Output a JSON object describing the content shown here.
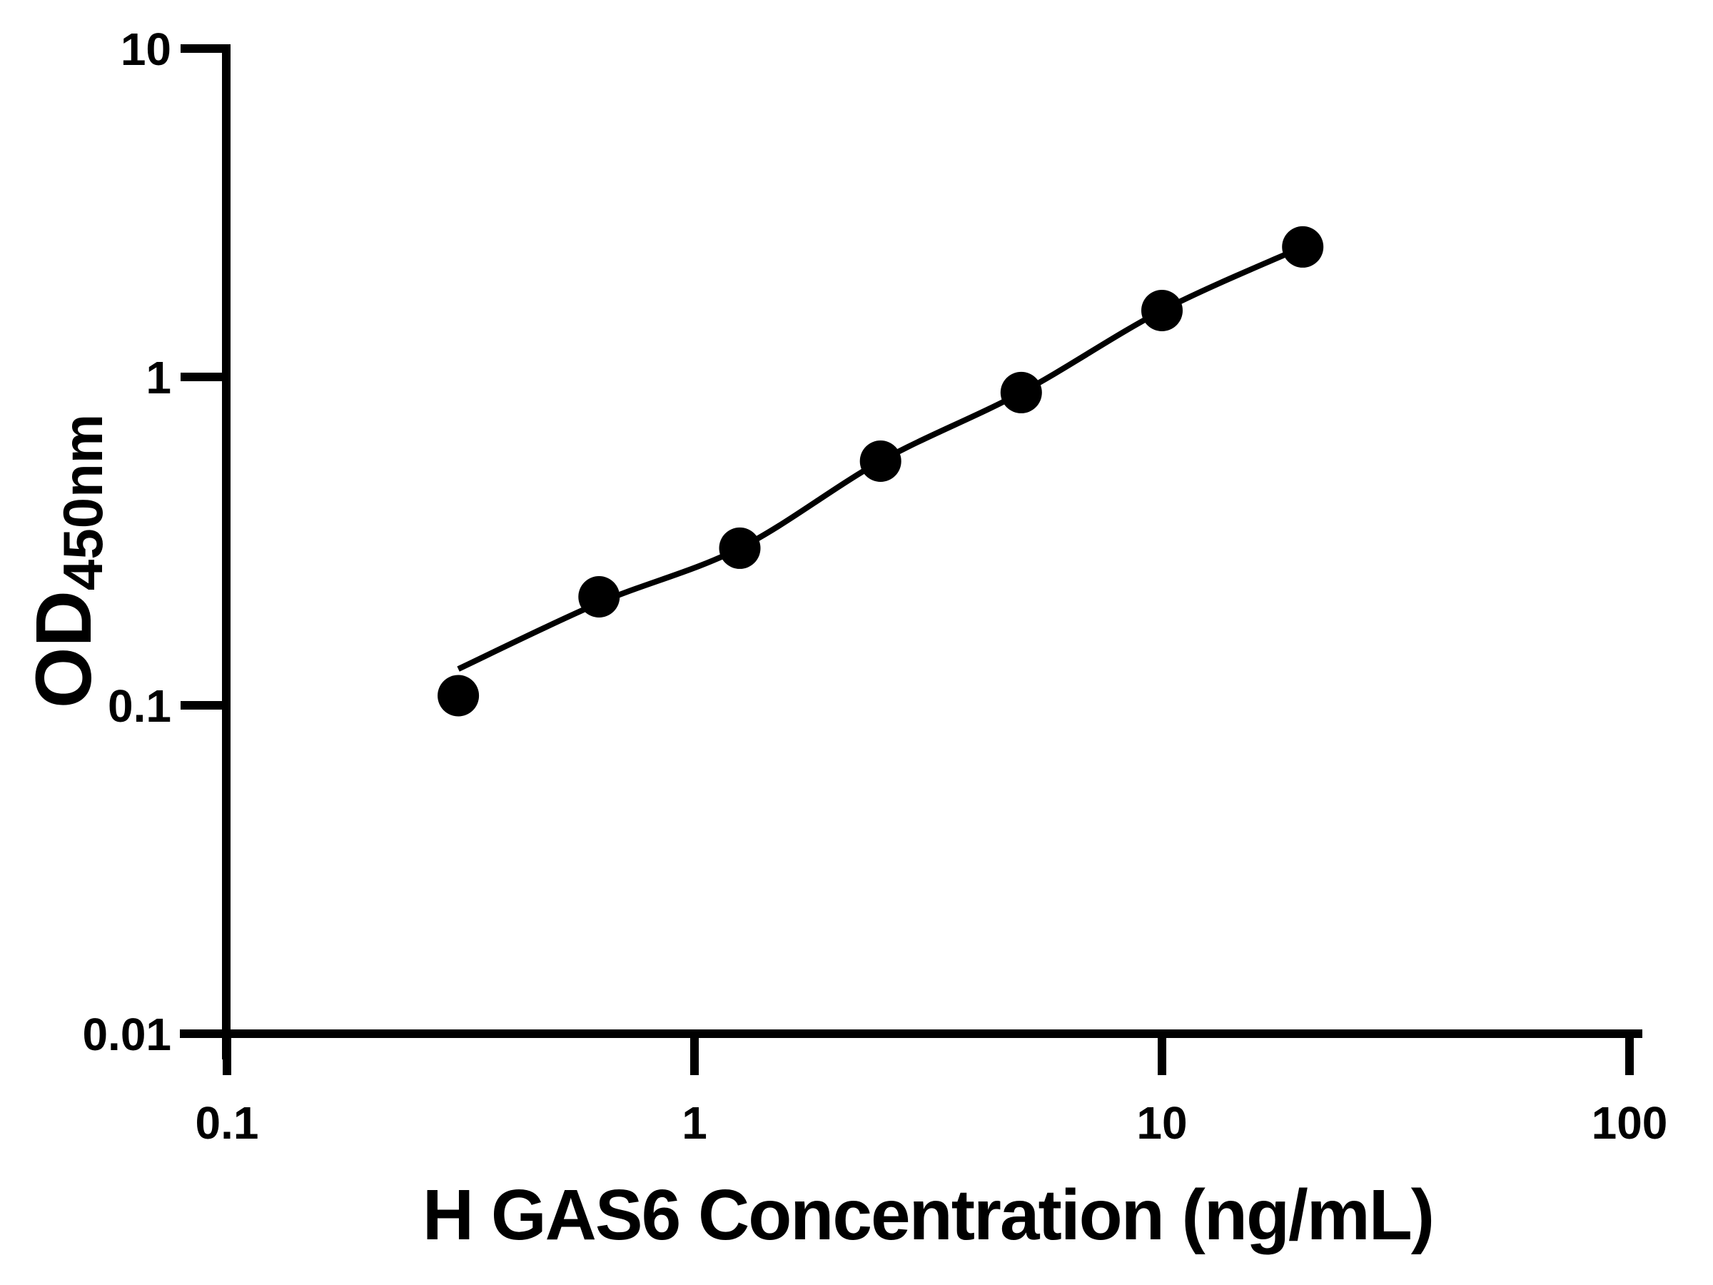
{
  "colors": {
    "ink": "#000000",
    "background": "#ffffff"
  },
  "chart_data": {
    "type": "scatter",
    "subtype": "standard-curve-with-fit-line",
    "title": "",
    "xlabel": "H GAS6 Concentration (ng/mL)",
    "ylabel": "OD450nm",
    "ylabel_parts": {
      "base": "OD",
      "subscript": "450nm"
    },
    "x_scale": "log",
    "y_scale": "log",
    "xlim": [
      0.1,
      100
    ],
    "ylim": [
      0.01,
      10
    ],
    "grid": "off",
    "legend": "none",
    "x_ticks": [
      {
        "value": 0.1,
        "label": "0.1"
      },
      {
        "value": 1,
        "label": "1"
      },
      {
        "value": 10,
        "label": "10"
      },
      {
        "value": 100,
        "label": "100"
      }
    ],
    "y_ticks": [
      {
        "value": 0.01,
        "label": "0.01"
      },
      {
        "value": 0.1,
        "label": "0.1"
      },
      {
        "value": 1,
        "label": "1"
      },
      {
        "value": 10,
        "label": "10"
      }
    ],
    "series": [
      {
        "name": "standard-curve-points",
        "marker": "filled-circle",
        "color": "#000000",
        "concentrations_ng_ml": [
          0.3125,
          0.625,
          1.25,
          2.5,
          5,
          10,
          20
        ],
        "od_values": [
          0.107,
          0.214,
          0.301,
          0.554,
          0.896,
          1.593,
          2.488
        ]
      }
    ],
    "fit_curve": {
      "name": "fit-line",
      "color": "#000000",
      "concentrations_ng_ml": [
        0.3125,
        0.625,
        1.25,
        2.5,
        5,
        10,
        20
      ],
      "od_values": [
        0.129,
        0.205,
        0.301,
        0.554,
        0.896,
        1.593,
        2.488
      ]
    }
  }
}
